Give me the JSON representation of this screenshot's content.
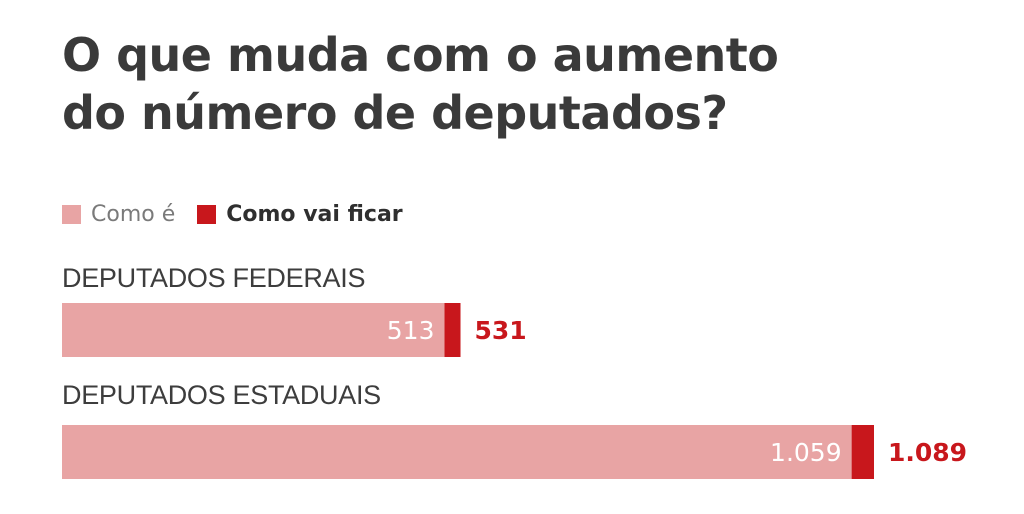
{
  "chart_data": {
    "type": "bar",
    "orientation": "horizontal",
    "title": "O que muda com o aumento do número de deputados?",
    "title_lines": [
      "O que muda com o aumento",
      "do número de deputados?"
    ],
    "categories": [
      "DEPUTADOS FEDERAIS",
      "DEPUTADOS ESTADUAIS"
    ],
    "series": [
      {
        "name": "Como é",
        "values": [
          513,
          1059
        ],
        "labels": [
          "513",
          "1.059"
        ],
        "color": "#e8a4a4"
      },
      {
        "name": "Como vai ficar",
        "values": [
          531,
          1089
        ],
        "labels": [
          "531",
          "1.089"
        ],
        "color": "#c8171c"
      }
    ],
    "legend_position": "top-left",
    "grid": false,
    "xlim": [
      0,
      1089
    ]
  }
}
